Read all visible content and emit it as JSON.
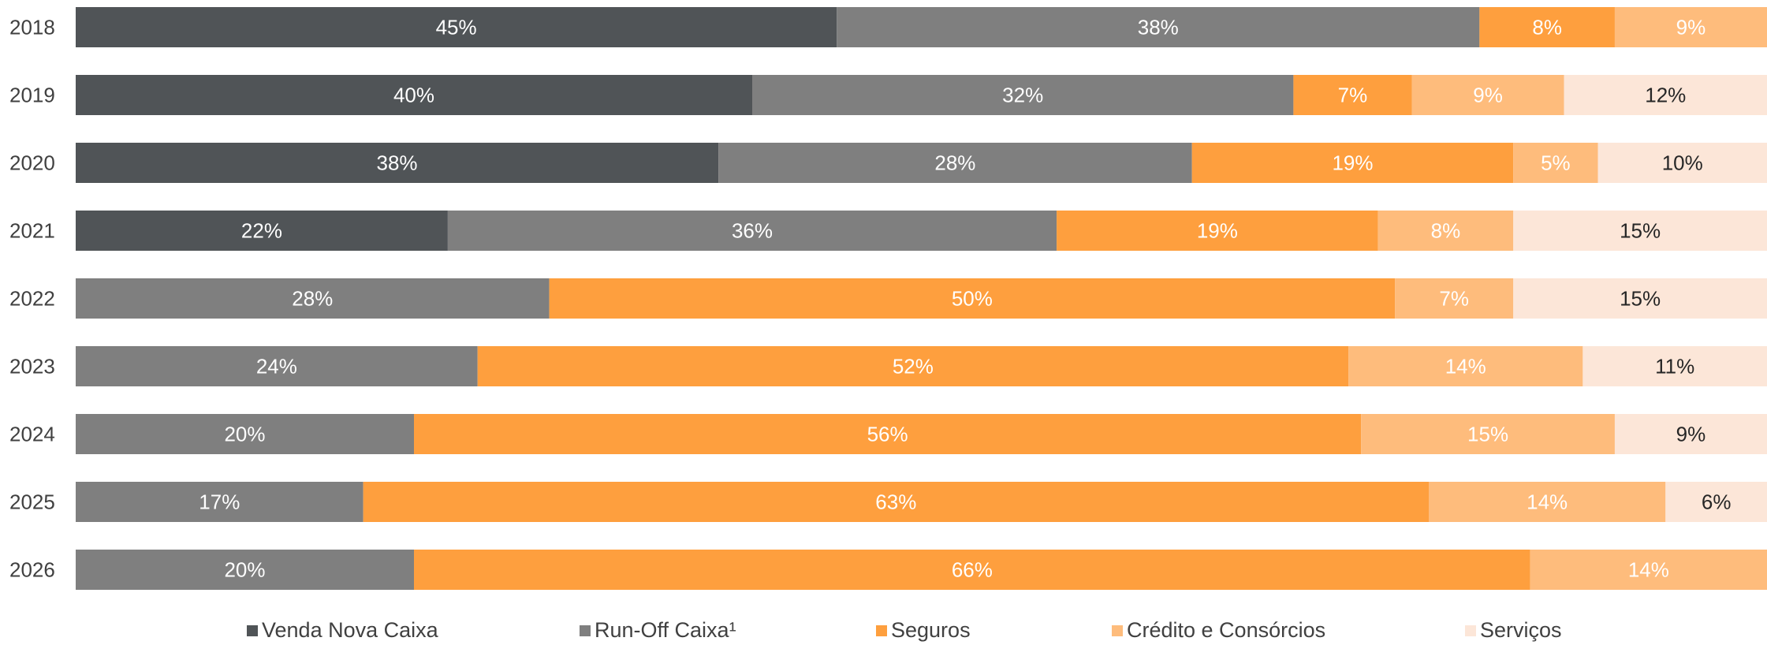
{
  "chart_data": {
    "type": "bar",
    "orientation": "horizontal",
    "stacked": true,
    "categories": [
      "2018",
      "2019",
      "2020",
      "2021",
      "2022",
      "2023",
      "2024",
      "2025",
      "2026"
    ],
    "series": [
      {
        "name": "Venda Nova Caixa",
        "color": "#505457",
        "label_color": "#ffffff",
        "values": [
          45,
          40,
          38,
          22,
          0,
          0,
          0,
          0,
          0
        ]
      },
      {
        "name": "Run-Off Caixa¹",
        "color": "#7f7f7f",
        "label_color": "#ffffff",
        "values": [
          38,
          32,
          28,
          36,
          28,
          24,
          20,
          17,
          20
        ]
      },
      {
        "name": "Seguros",
        "color": "#fe9f3e",
        "label_color": "#ffffff",
        "values": [
          8,
          7,
          19,
          19,
          50,
          52,
          56,
          63,
          66
        ]
      },
      {
        "name": "Crédito e Consórcios",
        "color": "#febc7c",
        "label_color": "#ffffff",
        "values": [
          9,
          9,
          5,
          8,
          7,
          14,
          15,
          14,
          14
        ]
      },
      {
        "name": "Serviços",
        "color": "#fce6d8",
        "label_color": "#262626",
        "values": [
          0,
          12,
          10,
          15,
          15,
          11,
          9,
          6,
          0
        ]
      }
    ],
    "legend_position": "bottom",
    "grid": false
  }
}
